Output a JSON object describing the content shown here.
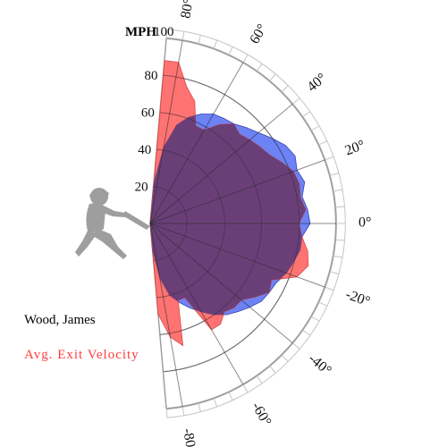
{
  "chart_data": {
    "type": "polar-area",
    "unit_label": "MPH",
    "player_name": "Wood, James",
    "metric_label": "Avg. Exit Velocity",
    "radial_range": [
      0,
      100
    ],
    "radial_ticks": [
      20,
      40,
      60,
      80
    ],
    "radial_max_label": "100",
    "angle_range_deg": [
      -85,
      85
    ],
    "angle_ticks": [
      {
        "value": 80,
        "label": "80°"
      },
      {
        "value": 60,
        "label": "60°"
      },
      {
        "value": 40,
        "label": "40°"
      },
      {
        "value": 20,
        "label": "20°"
      },
      {
        "value": 0,
        "label": "0°"
      },
      {
        "value": -20,
        "label": "-20°"
      },
      {
        "value": -40,
        "label": "-40°"
      },
      {
        "value": -60,
        "label": "-60°"
      },
      {
        "value": -80,
        "label": "-80°"
      }
    ],
    "colors": {
      "player": "#ff5a5a",
      "league": "#3c58f0",
      "overlap": "#6a3f78",
      "metric_text": "#ff3b3b",
      "grid": "#a0a0a0",
      "spoke": "#2a2a2a",
      "silhouette": "#9e9e9e"
    },
    "series": [
      {
        "angles": [
          85,
          80,
          75,
          70,
          65,
          60,
          55,
          50,
          45,
          40,
          35,
          30,
          25,
          20,
          15,
          10,
          5,
          0,
          -5,
          -10,
          -15,
          -20,
          -25,
          -30,
          -35,
          -40,
          -45,
          -50,
          -55,
          -60,
          -65,
          -70,
          -75,
          -80,
          -85
        ],
        "values": [
          88,
          88,
          76,
          70,
          58,
          58,
          65,
          70,
          68,
          70,
          72,
          74,
          78,
          82,
          83,
          82,
          84,
          80,
          82,
          86,
          88,
          84,
          72,
          74,
          69,
          64,
          64,
          62,
          66,
          66,
          44,
          44,
          68,
          62,
          49
        ]
      },
      {
        "angles": [
          85,
          80,
          75,
          70,
          65,
          60,
          55,
          50,
          45,
          40,
          35,
          30,
          25,
          20,
          15,
          10,
          5,
          0,
          -5,
          -10,
          -15,
          -20,
          -25,
          -30,
          -35,
          -40,
          -45,
          -50,
          -55,
          -60,
          -65,
          -70,
          -75,
          -80,
          -85
        ],
        "values": [
          22,
          42,
          55,
          61,
          65,
          68,
          69,
          70,
          73,
          76,
          80,
          84,
          86,
          84,
          86,
          83,
          85,
          86,
          82,
          82,
          80,
          78,
          75,
          74,
          73,
          70,
          67,
          64,
          60,
          55,
          50,
          45,
          40,
          30,
          15
        ]
      }
    ]
  }
}
